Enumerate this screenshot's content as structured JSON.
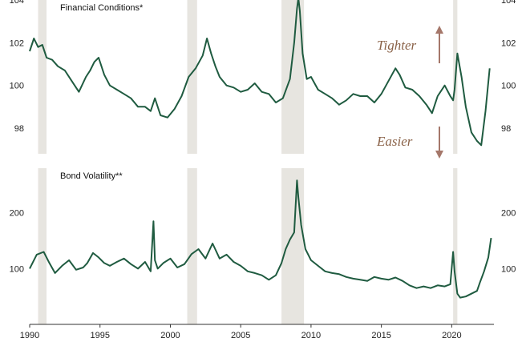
{
  "chart_data": [
    {
      "type": "line",
      "title": "Financial Conditions*",
      "ylim": [
        96.8,
        104
      ],
      "yticks": [
        98,
        100,
        102,
        104
      ],
      "xlim": [
        1990,
        2023
      ],
      "recessions": [
        [
          1990.6,
          1991.2
        ],
        [
          2001.2,
          2001.9
        ],
        [
          2007.9,
          2009.5
        ],
        [
          2020.1,
          2020.4
        ]
      ],
      "annotations": [
        {
          "label": "Tighter",
          "direction": "up"
        },
        {
          "label": "Easier",
          "direction": "down"
        }
      ],
      "series": [
        {
          "x": [
            1990.0,
            1990.3,
            1990.6,
            1990.9,
            1991.2,
            1991.6,
            1992.0,
            1992.5,
            1993.0,
            1993.5,
            1994.0,
            1994.3,
            1994.6,
            1994.9,
            1995.3,
            1995.7,
            1996.2,
            1996.7,
            1997.2,
            1997.7,
            1998.2,
            1998.6,
            1998.9,
            1999.3,
            1999.8,
            2000.3,
            2000.8,
            2001.3,
            2001.8,
            2002.3,
            2002.6,
            2002.9,
            2003.2,
            2003.5,
            2004.0,
            2004.5,
            2005.0,
            2005.5,
            2006.0,
            2006.5,
            2007.0,
            2007.5,
            2008.0,
            2008.5,
            2008.8,
            2009.0,
            2009.1,
            2009.2,
            2009.4,
            2009.7,
            2010.0,
            2010.5,
            2011.0,
            2011.5,
            2012.0,
            2012.5,
            2013.0,
            2013.5,
            2014.0,
            2014.5,
            2015.0,
            2015.5,
            2016.0,
            2016.3,
            2016.7,
            2017.2,
            2017.7,
            2018.2,
            2018.6,
            2019.0,
            2019.5,
            2019.9,
            2020.1,
            2020.2,
            2020.4,
            2020.7,
            2021.0,
            2021.4,
            2021.8,
            2022.1,
            2022.4,
            2022.7
          ],
          "values": [
            101.6,
            102.2,
            101.8,
            101.9,
            101.3,
            101.2,
            100.9,
            100.7,
            100.2,
            99.7,
            100.4,
            100.7,
            101.1,
            101.3,
            100.5,
            100.0,
            99.8,
            99.6,
            99.4,
            99.0,
            99.0,
            98.8,
            99.4,
            98.6,
            98.5,
            98.9,
            99.5,
            100.4,
            100.8,
            101.4,
            102.2,
            101.5,
            100.9,
            100.4,
            100.0,
            99.9,
            99.7,
            99.8,
            100.1,
            99.7,
            99.6,
            99.2,
            99.4,
            100.3,
            102.0,
            103.6,
            104.1,
            103.5,
            101.5,
            100.3,
            100.4,
            99.8,
            99.6,
            99.4,
            99.1,
            99.3,
            99.6,
            99.5,
            99.5,
            99.2,
            99.6,
            100.2,
            100.8,
            100.5,
            99.9,
            99.8,
            99.5,
            99.1,
            98.7,
            99.5,
            100.0,
            99.5,
            99.3,
            99.8,
            101.5,
            100.4,
            99.0,
            97.8,
            97.4,
            97.2,
            98.8,
            100.8
          ]
        }
      ]
    },
    {
      "type": "line",
      "title": "Bond Volatility**",
      "ylim": [
        0,
        280
      ],
      "yticks": [
        100,
        200
      ],
      "xlim": [
        1990,
        2023
      ],
      "xticks": [
        "1990",
        "1995",
        "2000",
        "2005",
        "2010",
        "2015",
        "2020"
      ],
      "recessions": [
        [
          1990.6,
          1991.2
        ],
        [
          2001.2,
          2001.9
        ],
        [
          2007.9,
          2009.5
        ],
        [
          2020.1,
          2020.4
        ]
      ],
      "series": [
        {
          "x": [
            1990.0,
            1990.5,
            1991.0,
            1991.4,
            1991.8,
            1992.3,
            1992.8,
            1993.3,
            1993.8,
            1994.1,
            1994.5,
            1994.9,
            1995.3,
            1995.7,
            1996.2,
            1996.7,
            1997.2,
            1997.7,
            1998.2,
            1998.6,
            1998.8,
            1998.9,
            1999.1,
            1999.5,
            2000.0,
            2000.5,
            2001.0,
            2001.5,
            2002.0,
            2002.5,
            2003.0,
            2003.5,
            2004.0,
            2004.5,
            2005.0,
            2005.5,
            2006.0,
            2006.5,
            2007.0,
            2007.5,
            2007.9,
            2008.2,
            2008.5,
            2008.8,
            2009.0,
            2009.1,
            2009.3,
            2009.6,
            2010.0,
            2010.5,
            2011.0,
            2011.5,
            2012.0,
            2012.5,
            2013.0,
            2013.5,
            2014.0,
            2014.5,
            2015.0,
            2015.5,
            2016.0,
            2016.5,
            2017.0,
            2017.5,
            2018.0,
            2018.5,
            2019.0,
            2019.5,
            2019.9,
            2020.1,
            2020.2,
            2020.4,
            2020.6,
            2021.0,
            2021.4,
            2021.8,
            2022.0,
            2022.3,
            2022.6,
            2022.8
          ],
          "values": [
            100,
            125,
            130,
            110,
            92,
            105,
            115,
            98,
            102,
            110,
            128,
            120,
            110,
            105,
            112,
            118,
            108,
            100,
            112,
            95,
            185,
            115,
            100,
            110,
            118,
            102,
            108,
            126,
            135,
            118,
            145,
            118,
            125,
            112,
            105,
            95,
            92,
            88,
            80,
            88,
            110,
            135,
            152,
            165,
            258,
            228,
            178,
            135,
            115,
            105,
            95,
            92,
            90,
            85,
            82,
            80,
            78,
            85,
            82,
            80,
            84,
            78,
            70,
            65,
            68,
            65,
            70,
            68,
            72,
            130,
            95,
            55,
            48,
            50,
            55,
            60,
            75,
            95,
            120,
            155
          ]
        }
      ]
    }
  ]
}
